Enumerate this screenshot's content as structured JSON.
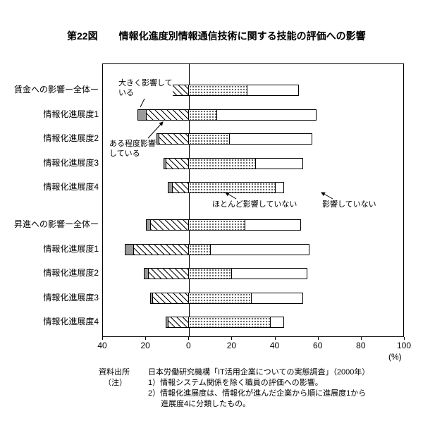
{
  "title": {
    "figure_no": "第22図",
    "text": "情報化進度別情報通信技術に関する技能の評価への影響"
  },
  "chart_data": {
    "type": "bar",
    "variant": "diverging-stacked-horizontal",
    "unit": "(%)",
    "xlim": [
      -40,
      100
    ],
    "axis_ticks": [
      "40",
      "20",
      "0",
      "20",
      "40",
      "60",
      "80",
      "100"
    ],
    "axis_tick_values": [
      -40,
      -20,
      0,
      20,
      40,
      60,
      80,
      100
    ],
    "grid": false,
    "categories": [
      "賃金への影響ー全体ー",
      "情報化進展度1",
      "情報化進展度2",
      "情報化進展度3",
      "情報化進展度4",
      "昇進への影響ー全体ー",
      "情報化進展度1",
      "情報化進展度2",
      "情報化進展度3",
      "情報化進展度4"
    ],
    "series": [
      {
        "name": "大きく影響している",
        "key": "strongly-affected",
        "pattern": "solid-gray",
        "side": "left",
        "values": [
          1,
          4,
          1,
          1,
          2,
          2,
          4,
          2,
          1,
          1
        ]
      },
      {
        "name": "ある程度影響している",
        "key": "somewhat-affected",
        "pattern": "diagonal-hatch",
        "side": "left",
        "values": [
          12,
          20,
          14,
          11,
          8,
          18,
          26,
          19,
          17,
          10
        ]
      },
      {
        "name": "ほとんど影響していない",
        "key": "hardly-affected",
        "pattern": "white",
        "side": "right",
        "values": [
          51,
          59,
          57,
          53,
          44,
          52,
          56,
          55,
          53,
          44
        ]
      },
      {
        "name": "影響していない",
        "key": "not-affected",
        "pattern": "dots",
        "side": "right",
        "values": [
          27,
          13,
          19,
          31,
          40,
          26,
          10,
          20,
          29,
          38
        ]
      }
    ],
    "annotations": [
      {
        "label": "大きく影響して\nいる",
        "target": "strongly-affected"
      },
      {
        "label": "ある程度影響\nしている",
        "target": "somewhat-affected"
      },
      {
        "label": "ほとんど影響していない",
        "target": "hardly-affected"
      },
      {
        "label": "影響していない",
        "target": "not-affected"
      }
    ],
    "colors": {
      "bar_border": "#000000",
      "solid_fill": "#9a9a9a",
      "hatch": "#000000",
      "dots": "#333333",
      "background": "#ffffff"
    }
  },
  "footer": {
    "source_label": "資料出所",
    "source_text": "日本労働研究機構「IT活用企業についての実態調査」（2000年）",
    "note_label": "（注）",
    "notes": [
      "1）情報システム関係を除く職員の評価への影響。",
      "2）情報化進展度は、情報化が進んだ企業から順に進展度1から",
      "進展度4に分類したもの。"
    ]
  }
}
